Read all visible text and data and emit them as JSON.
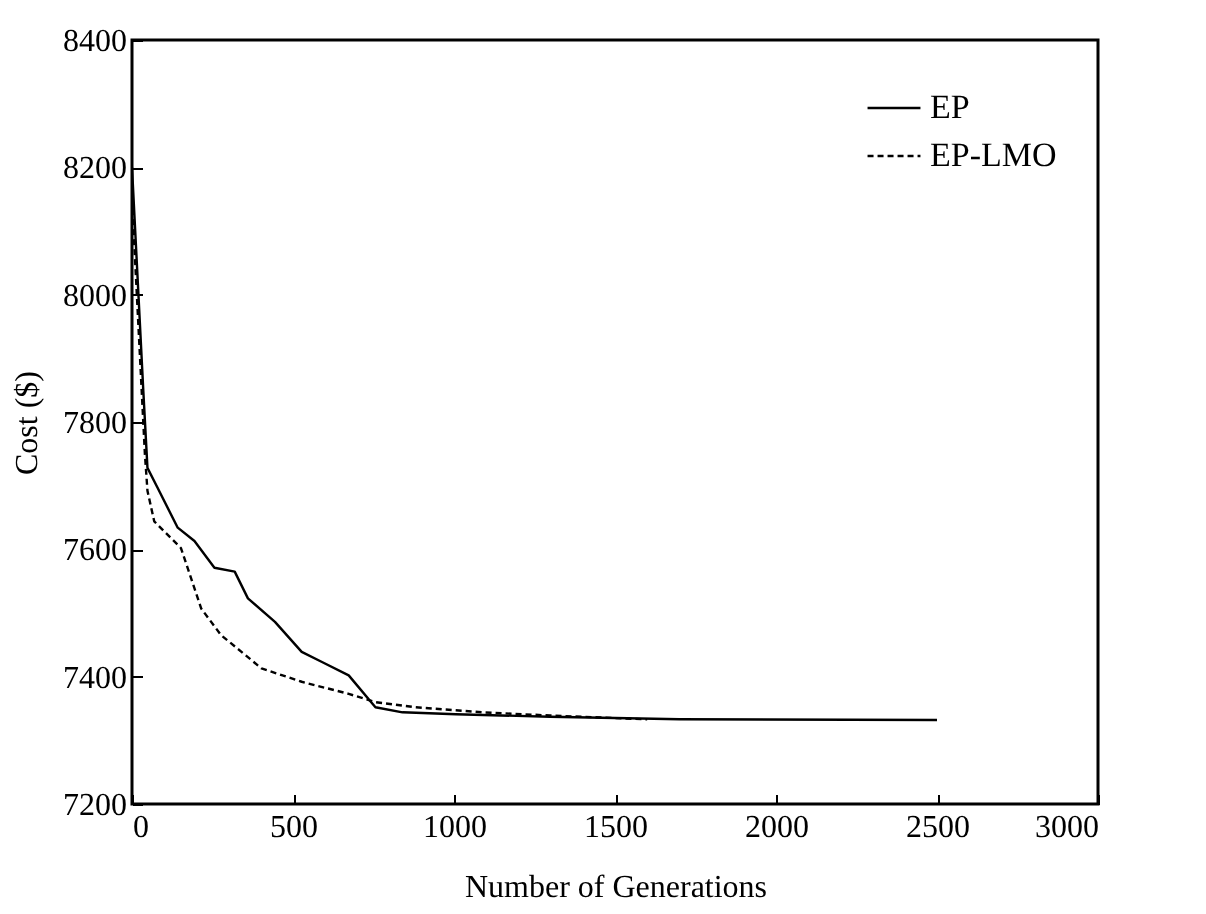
{
  "chart_data": {
    "type": "line",
    "xlabel": "Number of Generations",
    "ylabel": "Cost ($)",
    "xlim": [
      0,
      3000
    ],
    "xticks": [
      0,
      500,
      1000,
      1500,
      2000,
      2500,
      3000
    ],
    "ylim": [
      7200,
      8400
    ],
    "yticks": [
      7200,
      7400,
      7600,
      7800,
      8000,
      8200,
      8400
    ],
    "grid": false,
    "legend": "top right",
    "series": [
      {
        "name": "EP",
        "color": "#000000",
        "line_style": "solid",
        "x": [
          0,
          10,
          20,
          35,
          48,
          79,
          142,
          194,
          256,
          319,
          360,
          444,
          527,
          590,
          673,
          756,
          840,
          1006,
          1298,
          1700,
          2500
        ],
        "values": [
          8200,
          8100,
          8000,
          7850,
          7728,
          7697,
          7634,
          7613,
          7571,
          7565,
          7523,
          7486,
          7439,
          7423,
          7402,
          7352,
          7344,
          7341,
          7337,
          7333,
          7332
        ]
      },
      {
        "name": "EP-LMO",
        "color": "#000000",
        "line_style": "dashed",
        "x": [
          0,
          10,
          25,
          40,
          48,
          69,
          152,
          215,
          277,
          340,
          402,
          527,
          673,
          756,
          881,
          1090,
          1298,
          1600
        ],
        "values": [
          8150,
          8050,
          7900,
          7750,
          7692,
          7644,
          7602,
          7507,
          7465,
          7439,
          7413,
          7392,
          7373,
          7360,
          7352,
          7344,
          7339,
          7333
        ]
      }
    ]
  }
}
